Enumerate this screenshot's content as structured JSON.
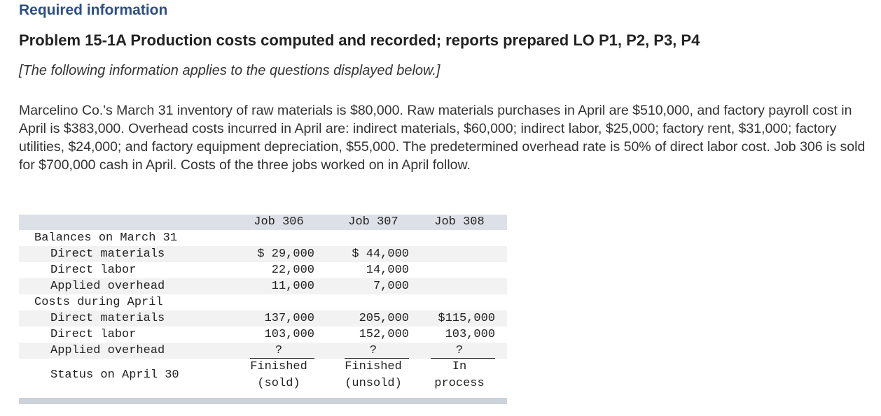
{
  "header": {
    "required": "Required information",
    "problem_title": "Problem 15-1A Production costs computed and recorded; reports prepared LO P1, P2, P3, P4",
    "note": "[The following information applies to the questions displayed below.]"
  },
  "intro": "Marcelino Co.'s March 31 inventory of raw materials is $80,000. Raw materials purchases in April are $510,000, and factory payroll cost in April is $383,000. Overhead costs incurred in April are: indirect materials, $60,000; indirect labor, $25,000; factory rent, $31,000; factory utilities, $24,000; and factory equipment depreciation, $55,000. The predetermined overhead rate is 50% of direct labor cost. Job 306 is sold for $700,000 cash in April. Costs of the three jobs worked on in April follow.",
  "table": {
    "columns": [
      "Job 306",
      "Job 307",
      "Job 308"
    ],
    "section1": "Balances on March 31",
    "section2": "Costs during April",
    "rows_march": [
      {
        "label": "Direct materials",
        "v": [
          "$ 29,000",
          "$ 44,000",
          ""
        ]
      },
      {
        "label": "Direct labor",
        "v": [
          "22,000",
          "14,000",
          ""
        ]
      },
      {
        "label": "Applied overhead",
        "v": [
          "11,000",
          "7,000",
          ""
        ]
      }
    ],
    "rows_april": [
      {
        "label": "Direct materials",
        "v": [
          "137,000",
          "205,000",
          "$115,000"
        ]
      },
      {
        "label": "Direct labor",
        "v": [
          "103,000",
          "152,000",
          "103,000"
        ]
      },
      {
        "label": "Applied overhead",
        "v": [
          "?",
          "?",
          "?"
        ]
      }
    ],
    "status_label": "Status on April 30",
    "status": [
      {
        "line1": "Finished",
        "line2": "(sold)"
      },
      {
        "line1": "Finished",
        "line2": "(unsold)"
      },
      {
        "line1": "In",
        "line2": "process"
      }
    ]
  }
}
